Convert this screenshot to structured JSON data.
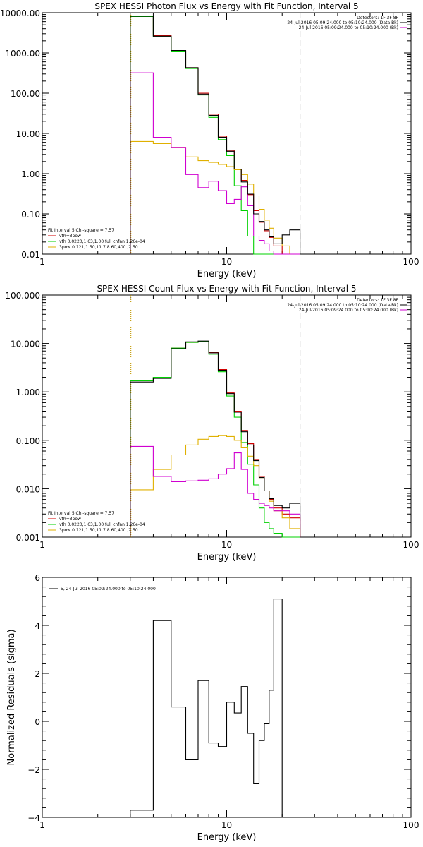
{
  "chart_data": [
    {
      "type": "line",
      "title": "SPEX HESSI Photon Flux vs Energy with Fit Function, Interval 5",
      "xlabel": "Energy (keV)",
      "ylabel": "",
      "xscale": "log",
      "yscale": "log",
      "xlim": [
        1,
        100
      ],
      "ylim": [
        0.01,
        10000
      ],
      "xticks": [
        1,
        10,
        100
      ],
      "xtick_labels": [
        "1",
        "10",
        "100"
      ],
      "yticks": [
        0.01,
        0.1,
        1,
        10,
        100,
        1000,
        10000
      ],
      "ytick_labels": [
        "0.01",
        "0.10",
        "1.00",
        "10.00",
        "100.00",
        "1000.00",
        "10000.00"
      ],
      "bin_edges": [
        3,
        4,
        5,
        6,
        7,
        8,
        9,
        10,
        11,
        12,
        13,
        14,
        15,
        16,
        17,
        18,
        20,
        22,
        25
      ],
      "vlines": [
        {
          "x": 3,
          "style": "dotted",
          "color": "#000000"
        },
        {
          "x": 3,
          "style": "dotted",
          "color": "#e0b000"
        },
        {
          "x": 25,
          "style": "dashed",
          "color": "#000000"
        }
      ],
      "series": [
        {
          "name": "vth+3pow",
          "color": "#d00000",
          "values": [
            8000,
            2700,
            1100,
            430,
            100,
            30,
            8.5,
            3.8,
            1.3,
            0.68,
            0.3,
            0.12,
            0.062,
            0.038,
            0.026,
            0.016,
            0.01,
            0.01
          ]
        },
        {
          "name": "vth 0.0220,1.63,1.00  full chfan 1.26e-04",
          "color": "#00d000",
          "values": [
            8000,
            2500,
            1100,
            410,
            90,
            25,
            7.0,
            2.8,
            0.5,
            0.12,
            0.028,
            0.01,
            0.01,
            0.01,
            0.01,
            0.01,
            0.01,
            0.01
          ]
        },
        {
          "name": "3pow 0.121,1.50,11.7,8.60,400.,2.50",
          "color": "#e0b000",
          "values": [
            6.3,
            5.6,
            4.5,
            2.6,
            2.1,
            1.9,
            1.7,
            1.5,
            1.25,
            0.95,
            0.55,
            0.28,
            0.13,
            0.07,
            0.044,
            0.025,
            0.016,
            0.01
          ]
        },
        {
          "name": "",
          "color": "#d000d0",
          "values": [
            320,
            8.0,
            4.5,
            0.95,
            0.45,
            0.65,
            0.38,
            0.18,
            0.23,
            0.47,
            0.16,
            0.028,
            0.022,
            0.018,
            0.012,
            0.01,
            0.01,
            0.01
          ]
        },
        {
          "name": "",
          "color": "#000000",
          "values": [
            8200,
            2600,
            1150,
            430,
            95,
            28,
            8.0,
            3.6,
            1.3,
            0.62,
            0.31,
            0.1,
            0.065,
            0.04,
            0.027,
            0.018,
            0.03,
            0.04
          ]
        }
      ],
      "legend": {
        "placement": "top-right",
        "lines": [
          "Detectors: 1F 3F 8F",
          "24-Jul-2016 05:09:24.000 to 05:10:24.000 (Data-Bk)",
          "24-Jul-2016 05:09:24.000 to 05:10:24.000 (Bk)"
        ],
        "line_colors": [
          "",
          "#000000",
          "#d000d0"
        ]
      },
      "fit_legend": {
        "placement": "bottom-left",
        "lines": [
          "Fit Interval 5   Chi-square = 7.57",
          "vth+3pow",
          "vth 0.0220,1.63,1.00  full chfan 1.26e-04",
          "3pow 0.121,1.50,11.7,8.60,400.,2.50"
        ],
        "line_colors": [
          "",
          "#d00000",
          "#00d000",
          "#e0b000"
        ]
      }
    },
    {
      "type": "line",
      "title": "SPEX HESSI Count Flux vs Energy with Fit Function, Interval 5",
      "xlabel": "Energy (keV)",
      "ylabel": "",
      "xscale": "log",
      "yscale": "log",
      "xlim": [
        1,
        100
      ],
      "ylim": [
        0.001,
        100
      ],
      "xticks": [
        1,
        10,
        100
      ],
      "xtick_labels": [
        "1",
        "10",
        "100"
      ],
      "yticks": [
        0.001,
        0.01,
        0.1,
        1,
        10,
        100
      ],
      "ytick_labels": [
        "0.001",
        "0.010",
        "0.100",
        "1.000",
        "10.000",
        "100.000"
      ],
      "bin_edges": [
        3,
        4,
        5,
        6,
        7,
        8,
        9,
        10,
        11,
        12,
        13,
        14,
        15,
        16,
        17,
        18,
        20,
        22,
        25
      ],
      "vlines": [
        {
          "x": 3,
          "style": "dotted",
          "color": "#000000"
        },
        {
          "x": 3,
          "style": "dotted",
          "color": "#e0b000"
        },
        {
          "x": 25,
          "style": "dashed",
          "color": "#000000"
        }
      ],
      "series": [
        {
          "name": "vth+3pow",
          "color": "#d00000",
          "values": [
            1.7,
            2.0,
            8.0,
            10.5,
            11.0,
            6.5,
            2.9,
            0.95,
            0.4,
            0.16,
            0.085,
            0.04,
            0.018,
            0.009,
            0.006,
            0.004,
            0.003,
            0.0025
          ]
        },
        {
          "name": "vth 0.0220,1.63,1.00  full chfan 1.26e-04",
          "color": "#00d000",
          "values": [
            1.7,
            2.0,
            8.0,
            10.5,
            11.0,
            6.0,
            2.6,
            0.82,
            0.3,
            0.09,
            0.032,
            0.012,
            0.004,
            0.002,
            0.0015,
            0.0012,
            0.001,
            0.001
          ]
        },
        {
          "name": "3pow 0.121,1.50,11.7,8.60,400.,2.50",
          "color": "#e0b000",
          "values": [
            0.0095,
            0.025,
            0.05,
            0.08,
            0.105,
            0.12,
            0.125,
            0.12,
            0.1,
            0.07,
            0.047,
            0.03,
            0.016,
            0.009,
            0.0055,
            0.0035,
            0.0025,
            0.0015
          ]
        },
        {
          "name": "",
          "color": "#d000d0",
          "values": [
            0.075,
            0.018,
            0.014,
            0.0145,
            0.015,
            0.016,
            0.02,
            0.026,
            0.055,
            0.025,
            0.008,
            0.006,
            0.005,
            0.0045,
            0.004,
            0.0035,
            0.0035,
            0.003
          ]
        },
        {
          "name": "",
          "color": "#000000",
          "values": [
            1.6,
            1.9,
            7.8,
            10.8,
            11.2,
            6.4,
            2.8,
            0.92,
            0.38,
            0.15,
            0.08,
            0.038,
            0.017,
            0.009,
            0.0062,
            0.0045,
            0.004,
            0.005
          ]
        }
      ],
      "legend": {
        "placement": "top-right",
        "lines": [
          "Detectors: 1F 3F 8F",
          "24-Jul-2016 05:09:24.000 to 05:10:24.000 (Data-Bk)",
          "24-Jul-2016 05:09:24.000 to 05:10:24.000 (Bk)"
        ],
        "line_colors": [
          "",
          "#000000",
          "#d000d0"
        ]
      },
      "fit_legend": {
        "placement": "bottom-left",
        "lines": [
          "Fit Interval 5   Chi-square = 7.57",
          "vth+3pow",
          "vth 0.0220,1.63,1.00  full chfan 1.26e-04",
          "3pow 0.121,1.50,11.7,8.60,400.,2.50"
        ],
        "line_colors": [
          "",
          "#d00000",
          "#00d000",
          "#e0b000"
        ]
      }
    },
    {
      "type": "line",
      "title": "",
      "xlabel": "Energy (keV)",
      "ylabel": "Normalized Residuals (sigma)",
      "xscale": "log",
      "yscale": "linear",
      "xlim": [
        1,
        100
      ],
      "ylim": [
        -4,
        6
      ],
      "xticks": [
        1,
        10,
        100
      ],
      "xtick_labels": [
        "1",
        "10",
        "100"
      ],
      "yticks": [
        -4,
        -2,
        0,
        2,
        4,
        6
      ],
      "ytick_labels": [
        "−4",
        "−2",
        "0",
        "2",
        "4",
        "6"
      ],
      "bin_edges": [
        3,
        4,
        5,
        6,
        7,
        8,
        9,
        10,
        11,
        12,
        13,
        14,
        15,
        16,
        17,
        18,
        20,
        22,
        25
      ],
      "series": [
        {
          "name": "5, 24-Jul-2016 05:09:24.000 to 05:10:24.000",
          "color": "#000000",
          "values": [
            -3.7,
            4.2,
            0.6,
            -1.6,
            1.7,
            -0.9,
            -1.05,
            0.8,
            0.35,
            1.45,
            -0.5,
            -2.6,
            -0.8,
            -0.1,
            1.3,
            5.1,
            -4,
            -4
          ]
        }
      ],
      "legend": {
        "placement": "top-left",
        "lines": [
          "5, 24-Jul-2016 05:09:24.000 to 05:10:24.000"
        ],
        "line_colors": [
          "#000000"
        ]
      }
    }
  ]
}
